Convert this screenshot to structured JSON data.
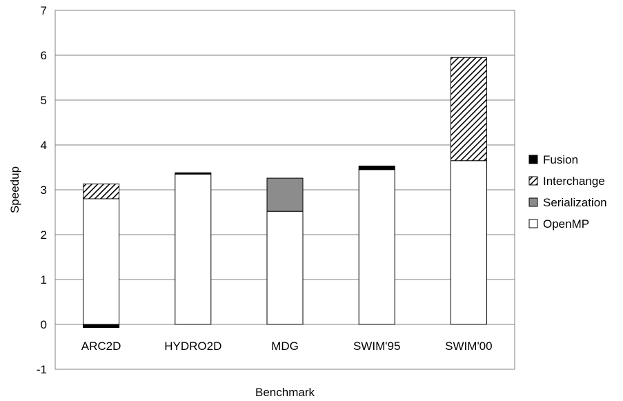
{
  "chart_data": {
    "type": "bar",
    "stacked": true,
    "title": "",
    "xlabel": "Benchmark",
    "ylabel": "Speedup",
    "ylim": [
      -1,
      7
    ],
    "yticks": [
      "-1",
      "0",
      "1",
      "2",
      "3",
      "4",
      "5",
      "6",
      "7"
    ],
    "grid": true,
    "legend_position": "right",
    "categories": [
      "ARC2D",
      "HYDRO2D",
      "MDG",
      "SWIM'95",
      "SWIM'00"
    ],
    "series": [
      {
        "name": "OpenMP",
        "pattern": "white",
        "values": [
          2.8,
          3.35,
          2.52,
          3.45,
          3.65
        ]
      },
      {
        "name": "Serialization",
        "pattern": "gray",
        "values": [
          0,
          0,
          0.74,
          0,
          0
        ]
      },
      {
        "name": "Interchange",
        "pattern": "hatched",
        "values": [
          0.33,
          0,
          0,
          0,
          2.3
        ]
      },
      {
        "name": "Fusion",
        "pattern": "black",
        "values": [
          -0.07,
          0.03,
          0,
          0.08,
          0
        ]
      }
    ],
    "legend_order": [
      "Fusion",
      "Interchange",
      "Serialization",
      "OpenMP"
    ],
    "colors": {
      "grid": "#808080",
      "plot_border": "#808080",
      "bar_stroke": "#000000",
      "white": "#ffffff",
      "gray": "#8c8c8c",
      "black": "#000000"
    }
  }
}
